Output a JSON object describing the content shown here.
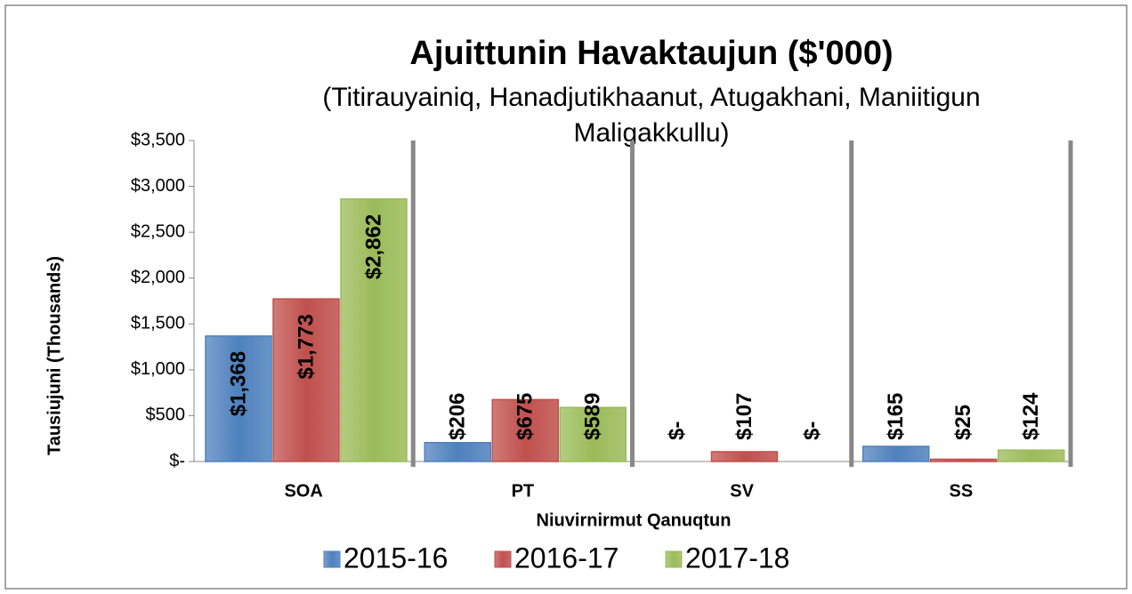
{
  "chart_data": {
    "type": "bar",
    "title": "Ajuittunin Havaktaujun ($'000)",
    "subtitle": [
      "(Titirauyainiq, Hanadjutikhaanut, Atugakhani, Maniitigun",
      "Maligakkullu)"
    ],
    "y_label": "Tausiujuni (Thousands)",
    "x_label": "Niuvirnirmut Qanuqtun",
    "categories": [
      "SOA",
      "PT",
      "SV",
      "SS"
    ],
    "series": [
      {
        "name": "2015-16",
        "color": "#4f81bd",
        "values": [
          1368,
          206,
          0,
          165
        ],
        "value_labels": [
          "$1,368",
          "$206",
          "$-",
          "$165"
        ]
      },
      {
        "name": "2016-17",
        "color": "#c0504d",
        "values": [
          1773,
          675,
          107,
          25
        ],
        "value_labels": [
          "$1,773",
          "$675",
          "$107",
          "$25"
        ]
      },
      {
        "name": "2017-18",
        "color": "#9bbb59",
        "values": [
          2862,
          589,
          0,
          124
        ],
        "value_labels": [
          "$2,862",
          "$589",
          "$-",
          "$124"
        ]
      }
    ],
    "ylim": [
      0,
      3500
    ],
    "yticks": [
      {
        "value": 0,
        "label": "$-"
      },
      {
        "value": 500,
        "label": "$500"
      },
      {
        "value": 1000,
        "label": "$1,000"
      },
      {
        "value": 1500,
        "label": "$1,500"
      },
      {
        "value": 2000,
        "label": "$2,000"
      },
      {
        "value": 2500,
        "label": "$2,500"
      },
      {
        "value": 3000,
        "label": "$3,000"
      },
      {
        "value": 3500,
        "label": "$3,500"
      }
    ],
    "legend": "bottom"
  }
}
